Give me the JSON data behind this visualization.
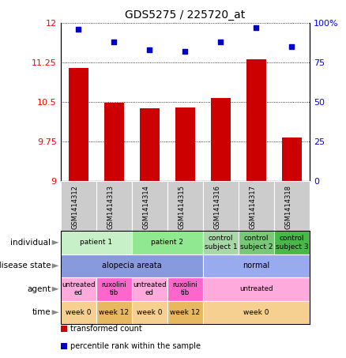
{
  "title": "GDS5275 / 225720_at",
  "samples": [
    "GSM1414312",
    "GSM1414313",
    "GSM1414314",
    "GSM1414315",
    "GSM1414316",
    "GSM1414317",
    "GSM1414318"
  ],
  "transformed_count": [
    11.15,
    10.48,
    10.38,
    10.4,
    10.57,
    11.32,
    9.82
  ],
  "percentile_rank": [
    96,
    88,
    83,
    82,
    88,
    97,
    85
  ],
  "ylim_left": [
    9,
    12
  ],
  "ylim_right": [
    0,
    100
  ],
  "yticks_left": [
    9,
    9.75,
    10.5,
    11.25,
    12
  ],
  "yticks_right": [
    0,
    25,
    50,
    75,
    100
  ],
  "bar_color": "#cc0000",
  "dot_color": "#0000cc",
  "individual_spans": [
    [
      0,
      2,
      "patient 1",
      "#c8f0c8"
    ],
    [
      2,
      4,
      "patient 2",
      "#90e890"
    ],
    [
      4,
      5,
      "control\nsubject 1",
      "#a8d8a8"
    ],
    [
      5,
      6,
      "control\nsubject 2",
      "#78c878"
    ],
    [
      6,
      7,
      "control\nsubject 3",
      "#48b848"
    ]
  ],
  "disease_spans": [
    [
      0,
      4,
      "alopecia areata",
      "#8899dd"
    ],
    [
      4,
      7,
      "normal",
      "#99aaee"
    ]
  ],
  "agent_spans": [
    [
      0,
      1,
      "untreated\ned",
      "#ffaadd"
    ],
    [
      1,
      2,
      "ruxolini\ntib",
      "#ff66cc"
    ],
    [
      2,
      3,
      "untreated\ned",
      "#ffaadd"
    ],
    [
      3,
      4,
      "ruxolini\ntib",
      "#ff66cc"
    ],
    [
      4,
      7,
      "untreated",
      "#ffaadd"
    ]
  ],
  "time_spans": [
    [
      0,
      1,
      "week 0",
      "#f5d090"
    ],
    [
      1,
      2,
      "week 12",
      "#e8b860"
    ],
    [
      2,
      3,
      "week 0",
      "#f5d090"
    ],
    [
      3,
      4,
      "week 12",
      "#e8b860"
    ],
    [
      4,
      7,
      "week 0",
      "#f5d090"
    ]
  ],
  "row_labels": [
    "individual",
    "disease state",
    "agent",
    "time"
  ],
  "legend_items": [
    {
      "color": "#cc0000",
      "label": "transformed count"
    },
    {
      "color": "#0000cc",
      "label": "percentile rank within the sample"
    }
  ],
  "sample_label_bg": "#cccccc"
}
